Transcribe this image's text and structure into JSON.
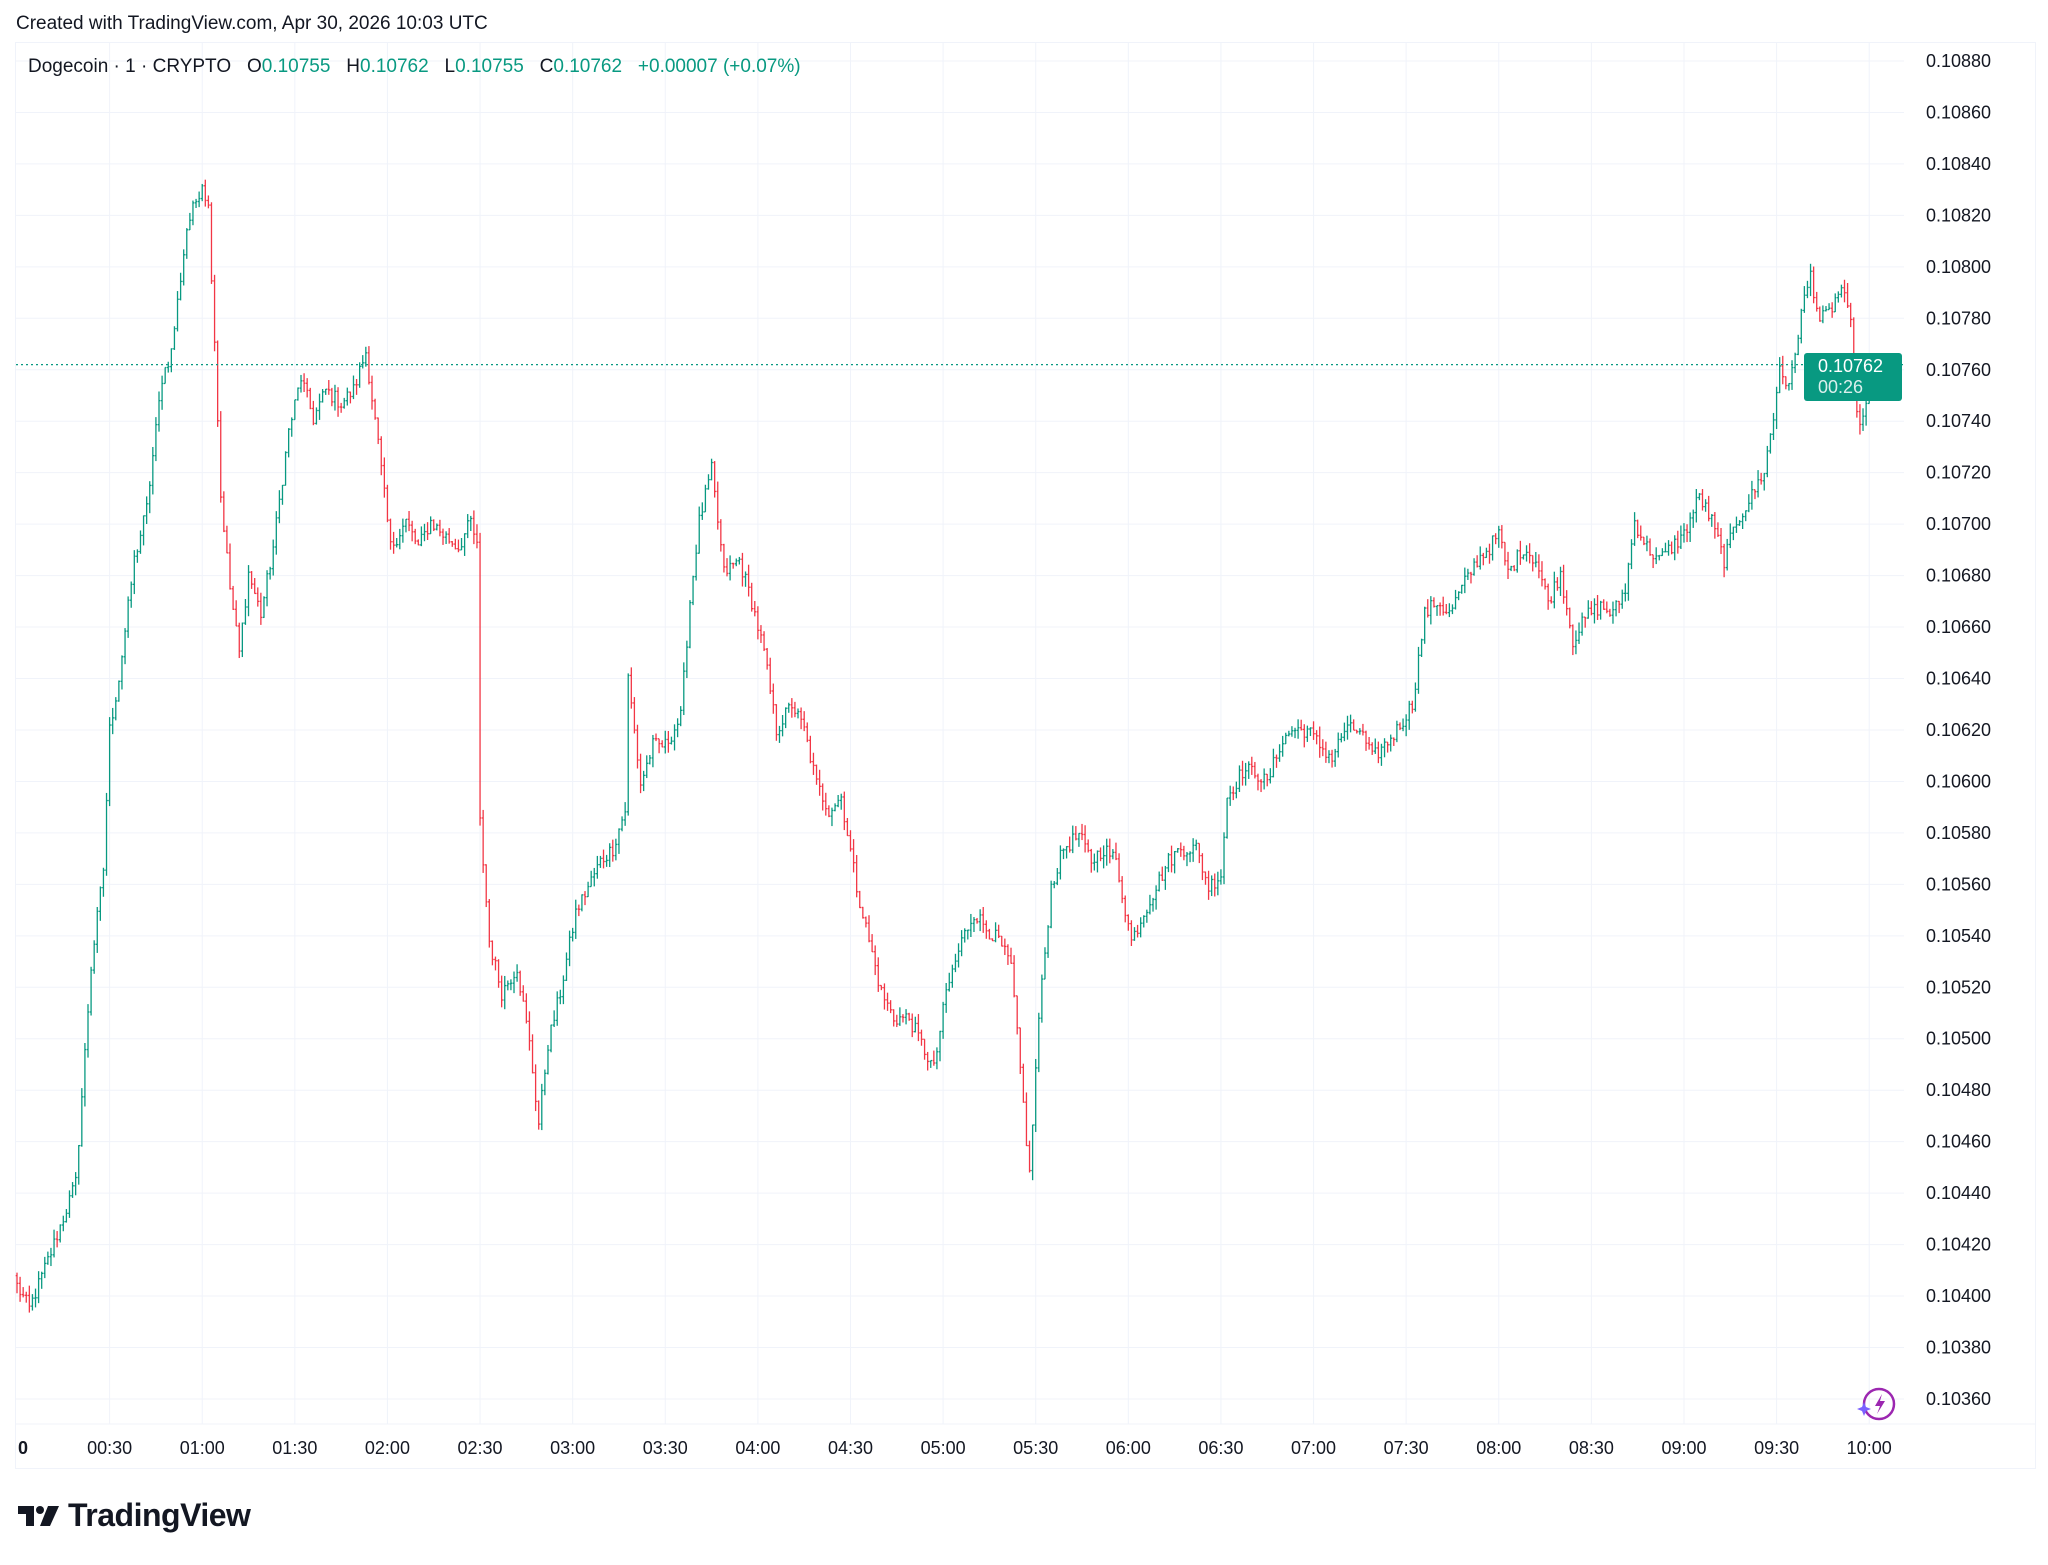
{
  "header": {
    "created": "Created with TradingView.com, Apr 30, 2026 10:03 UTC"
  },
  "legend": {
    "symbol": "Dogecoin · 1 · CRYPTO",
    "o_label": "O",
    "o": "0.10755",
    "h_label": "H",
    "h": "0.10762",
    "l_label": "L",
    "l": "0.10755",
    "c_label": "C",
    "c": "0.10762",
    "change": "+0.00007 (+0.07%)"
  },
  "price_label": {
    "price": "0.10762",
    "countdown": "00:26"
  },
  "logo": {
    "text": "TradingView",
    "mark": "TV"
  },
  "colors": {
    "up": "#089981",
    "down": "#F23645",
    "grid": "#F0F3FA",
    "accent": "#089981"
  },
  "chart_data": {
    "type": "ohlc",
    "title": "Dogecoin · 1 · CRYPTO",
    "interval_minutes": 1,
    "last_price": 0.10762,
    "ylim": [
      0.1035,
      0.1089
    ],
    "yticks": [
      "0.10880",
      "0.10860",
      "0.10840",
      "0.10820",
      "0.10800",
      "0.10780",
      "0.10760",
      "0.10740",
      "0.10720",
      "0.10700",
      "0.10680",
      "0.10660",
      "0.10640",
      "0.10620",
      "0.10600",
      "0.10580",
      "0.10560",
      "0.10540",
      "0.10520",
      "0.10500",
      "0.10480",
      "0.10460",
      "0.10440",
      "0.10420",
      "0.10400",
      "0.10380",
      "0.10360"
    ],
    "xticks": [
      "0",
      "00:30",
      "01:00",
      "01:30",
      "02:00",
      "02:30",
      "03:00",
      "03:30",
      "04:00",
      "04:30",
      "05:00",
      "05:30",
      "06:00",
      "06:30",
      "07:00",
      "07:30",
      "08:00",
      "08:30",
      "09:00",
      "09:30",
      "10:00"
    ],
    "grid": true,
    "close_path_minute_price": [
      [
        0,
        0.10404
      ],
      [
        4,
        0.10395
      ],
      [
        11,
        0.10417
      ],
      [
        19,
        0.10444
      ],
      [
        24,
        0.10528
      ],
      [
        28,
        0.10566
      ],
      [
        30,
        0.1062
      ],
      [
        33,
        0.1064
      ],
      [
        38,
        0.10686
      ],
      [
        42,
        0.10706
      ],
      [
        47,
        0.10757
      ],
      [
        50,
        0.10767
      ],
      [
        55,
        0.10815
      ],
      [
        60,
        0.10833
      ],
      [
        62,
        0.10823
      ],
      [
        64,
        0.10772
      ],
      [
        66,
        0.10711
      ],
      [
        69,
        0.10675
      ],
      [
        72,
        0.1065
      ],
      [
        75,
        0.10681
      ],
      [
        79,
        0.10665
      ],
      [
        83,
        0.10691
      ],
      [
        88,
        0.10736
      ],
      [
        92,
        0.10757
      ],
      [
        96,
        0.10741
      ],
      [
        100,
        0.10752
      ],
      [
        105,
        0.10747
      ],
      [
        109,
        0.10752
      ],
      [
        113,
        0.10767
      ],
      [
        117,
        0.10731
      ],
      [
        121,
        0.10691
      ],
      [
        126,
        0.10701
      ],
      [
        130,
        0.10691
      ],
      [
        134,
        0.10701
      ],
      [
        138,
        0.10696
      ],
      [
        143,
        0.10691
      ],
      [
        147,
        0.10701
      ],
      [
        149,
        0.10691
      ],
      [
        150,
        0.10584
      ],
      [
        153,
        0.10538
      ],
      [
        157,
        0.10518
      ],
      [
        162,
        0.10528
      ],
      [
        166,
        0.10498
      ],
      [
        169,
        0.10467
      ],
      [
        172,
        0.10498
      ],
      [
        176,
        0.10518
      ],
      [
        181,
        0.10549
      ],
      [
        185,
        0.10559
      ],
      [
        189,
        0.10569
      ],
      [
        193,
        0.10574
      ],
      [
        197,
        0.10589
      ],
      [
        198,
        0.1064
      ],
      [
        202,
        0.10599
      ],
      [
        206,
        0.10614
      ],
      [
        210,
        0.10614
      ],
      [
        215,
        0.10625
      ],
      [
        218,
        0.1067
      ],
      [
        221,
        0.10701
      ],
      [
        225,
        0.10721
      ],
      [
        229,
        0.10681
      ],
      [
        234,
        0.10686
      ],
      [
        238,
        0.1067
      ],
      [
        242,
        0.1065
      ],
      [
        246,
        0.1062
      ],
      [
        251,
        0.1063
      ],
      [
        255,
        0.1062
      ],
      [
        259,
        0.10599
      ],
      [
        263,
        0.10589
      ],
      [
        267,
        0.10594
      ],
      [
        272,
        0.10559
      ],
      [
        276,
        0.10538
      ],
      [
        280,
        0.10518
      ],
      [
        284,
        0.10508
      ],
      [
        289,
        0.10508
      ],
      [
        293,
        0.10498
      ],
      [
        297,
        0.10488
      ],
      [
        301,
        0.10518
      ],
      [
        306,
        0.10538
      ],
      [
        310,
        0.10549
      ],
      [
        314,
        0.10543
      ],
      [
        318,
        0.10538
      ],
      [
        322,
        0.10528
      ],
      [
        325,
        0.10488
      ],
      [
        328,
        0.10447
      ],
      [
        331,
        0.10508
      ],
      [
        335,
        0.10559
      ],
      [
        339,
        0.10574
      ],
      [
        344,
        0.10579
      ],
      [
        348,
        0.10569
      ],
      [
        352,
        0.10574
      ],
      [
        356,
        0.10569
      ],
      [
        361,
        0.10538
      ],
      [
        365,
        0.10549
      ],
      [
        369,
        0.10559
      ],
      [
        373,
        0.10569
      ],
      [
        377,
        0.10574
      ],
      [
        382,
        0.10574
      ],
      [
        386,
        0.10559
      ],
      [
        390,
        0.10564
      ],
      [
        392,
        0.10594
      ],
      [
        397,
        0.10604
      ],
      [
        401,
        0.10604
      ],
      [
        405,
        0.10599
      ],
      [
        409,
        0.10614
      ],
      [
        413,
        0.1062
      ],
      [
        418,
        0.1062
      ],
      [
        422,
        0.10614
      ],
      [
        426,
        0.10609
      ],
      [
        430,
        0.1062
      ],
      [
        435,
        0.1062
      ],
      [
        439,
        0.10609
      ],
      [
        443,
        0.10614
      ],
      [
        447,
        0.1062
      ],
      [
        452,
        0.1063
      ],
      [
        456,
        0.10665
      ],
      [
        460,
        0.1067
      ],
      [
        464,
        0.10665
      ],
      [
        468,
        0.10675
      ],
      [
        473,
        0.10686
      ],
      [
        477,
        0.10691
      ],
      [
        480,
        0.10696
      ],
      [
        483,
        0.10681
      ],
      [
        488,
        0.10691
      ],
      [
        492,
        0.10686
      ],
      [
        496,
        0.1067
      ],
      [
        500,
        0.10681
      ],
      [
        504,
        0.10655
      ],
      [
        509,
        0.10665
      ],
      [
        513,
        0.10668
      ],
      [
        517,
        0.10665
      ],
      [
        521,
        0.10675
      ],
      [
        524,
        0.10701
      ],
      [
        528,
        0.10691
      ],
      [
        532,
        0.10686
      ],
      [
        536,
        0.10691
      ],
      [
        540,
        0.10696
      ],
      [
        545,
        0.10711
      ],
      [
        549,
        0.10701
      ],
      [
        553,
        0.10686
      ],
      [
        557,
        0.10701
      ],
      [
        562,
        0.10711
      ],
      [
        566,
        0.10721
      ],
      [
        569,
        0.10741
      ],
      [
        571,
        0.10762
      ],
      [
        574,
        0.10752
      ],
      [
        578,
        0.10782
      ],
      [
        581,
        0.10797
      ],
      [
        584,
        0.10779
      ],
      [
        587,
        0.10782
      ],
      [
        591,
        0.10792
      ],
      [
        594,
        0.10777
      ],
      [
        596,
        0.10741
      ],
      [
        598,
        0.10741
      ],
      [
        603,
        0.10762
      ]
    ]
  }
}
